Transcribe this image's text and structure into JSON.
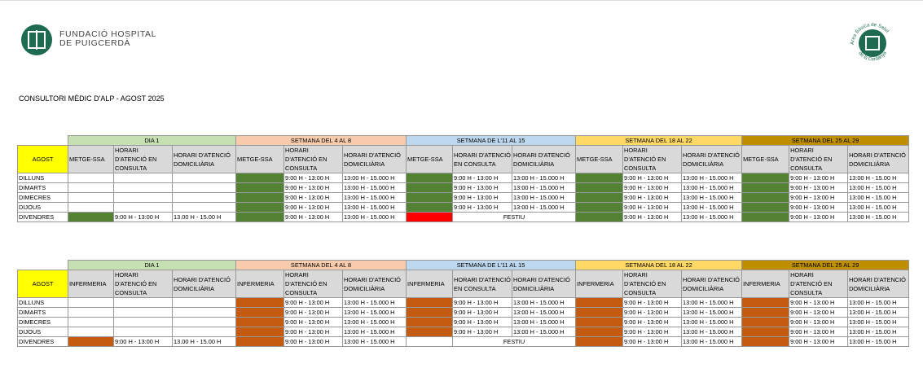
{
  "header": {
    "org_lines": [
      "FUNDACIÓ HOSPITAL",
      "DE PUIGCERDÀ"
    ],
    "logo2_lines": [
      "Àrea Bàsica de Salut",
      "de la Cerdanya"
    ]
  },
  "title": "CONSULTORI MÈDIC D'ALP - AGOST 2025",
  "tables": [
    {
      "corner": "AGOST",
      "corner_color": "#ffff00",
      "weeks": [
        {
          "label": "DIA 1",
          "color": "#c6e0b4"
        },
        {
          "label": "SETMANA DEL 4 AL 8",
          "color": "#f8cbad"
        },
        {
          "label": "SETMANA DE L'11 AL 15",
          "color": "#bdd7ee"
        },
        {
          "label": "SETMANA DEL 18 AL 22",
          "color": "#ffd966"
        },
        {
          "label": "SETMANA DEL 25 AL 29",
          "color": "#bf8f00"
        }
      ],
      "columns": [
        "METGE-SSA",
        "HORARI D'ATENCIÓ EN CONSULTA",
        "HORARI D'ATENCIÓ DOMICILIÀRIA"
      ],
      "rows": [
        {
          "day": "DILLUNS",
          "weeks": [
            {
              "staff": null,
              "consulta": null,
              "domicili": null
            },
            {
              "staff": "#548235",
              "consulta": "9:00 H - 13:00 H",
              "domicili": "13:00 H - 15.000 H"
            },
            {
              "staff": "#548235",
              "consulta": "9:00 H - 13:00 H",
              "domicili": "13:00 H - 15.000 H"
            },
            {
              "staff": "#548235",
              "consulta": "9:00 H - 13:00 H",
              "domicili": "13:00 H - 15.000 H"
            },
            {
              "staff": "#548235",
              "consulta": "9:00 H - 13:00 H",
              "domicili": "13:00 H - 15.00 H"
            }
          ]
        },
        {
          "day": "DIMARTS",
          "weeks": [
            {
              "staff": null,
              "consulta": null,
              "domicili": null
            },
            {
              "staff": "#548235",
              "consulta": "9:00 H - 13:00 H",
              "domicili": "13:00 H - 15.000 H"
            },
            {
              "staff": "#548235",
              "consulta": "9:00 H - 13:00 H",
              "domicili": "13:00 H - 15.000 H"
            },
            {
              "staff": "#548235",
              "consulta": "9:00 H - 13:00 H",
              "domicili": "13:00 H - 15.000 H"
            },
            {
              "staff": "#548235",
              "consulta": "9:00 H - 13:00 H",
              "domicili": "13:00 H - 15.00 H"
            }
          ]
        },
        {
          "day": "DIMECRES",
          "weeks": [
            {
              "staff": null,
              "consulta": null,
              "domicili": null
            },
            {
              "staff": "#548235",
              "consulta": "9:00 H - 13:00 H",
              "domicili": "13:00 H - 15.000 H"
            },
            {
              "staff": "#548235",
              "consulta": "9:00 H - 13:00 H",
              "domicili": "13:00 H - 15.000 H"
            },
            {
              "staff": "#548235",
              "consulta": "9:00 H - 13:00 H",
              "domicili": "13:00 H - 15.000 H"
            },
            {
              "staff": "#548235",
              "consulta": "9:00 H - 13:00 H",
              "domicili": "13:00 H - 15.00 H"
            }
          ]
        },
        {
          "day": "DIJOUS",
          "weeks": [
            {
              "staff": null,
              "consulta": null,
              "domicili": null
            },
            {
              "staff": "#548235",
              "consulta": "9:00 H - 13:00 H",
              "domicili": "13:00 H - 15.000 H"
            },
            {
              "staff": "#548235",
              "consulta": "9:00 H - 13:00 H",
              "domicili": "13:00 H - 15.000 H"
            },
            {
              "staff": "#548235",
              "consulta": "9:00 H - 13:00 H",
              "domicili": "13:00 H - 15.000 H"
            },
            {
              "staff": "#548235",
              "consulta": "9:00 H - 13:00 H",
              "domicili": "13:00 H - 15.00 H"
            }
          ]
        },
        {
          "day": "DIVENDRES",
          "weeks": [
            {
              "staff": "#548235",
              "consulta": "9:00 H - 13:00 H",
              "domicili": "13.00 H - 15.00 H"
            },
            {
              "staff": "#548235",
              "consulta": "9:00 H - 13:00 H",
              "domicili": "13:00 H - 15.000 H"
            },
            {
              "staff": "#ff0000",
              "closed": "FESTIU"
            },
            {
              "staff": "#548235",
              "consulta": "9:00 H - 13:00 H",
              "domicili": "13:00 H - 15.000 H"
            },
            {
              "staff": "#548235",
              "consulta": "9:00 H - 13:00 H",
              "domicili": "13:00 H - 15.00 H"
            }
          ]
        }
      ]
    },
    {
      "corner": "AGOST",
      "corner_color": "#ffff00",
      "weeks": [
        {
          "label": "DIA 1",
          "color": "#c6e0b4"
        },
        {
          "label": "SETMANA DEL 4 AL 8",
          "color": "#f8cbad"
        },
        {
          "label": "SETMANA DE L'11 AL 15",
          "color": "#bdd7ee"
        },
        {
          "label": "SETMANA DEL 18 AL 22",
          "color": "#ffd966"
        },
        {
          "label": "SETMANA DEL 25 AL 29",
          "color": "#bf8f00"
        }
      ],
      "columns": [
        "INFERMERIA",
        "HORARI D'ATENCIÓ EN CONSULTA",
        "HORARI D'ATENCIÓ DOMICILIÀRIA"
      ],
      "rows": [
        {
          "day": "DILLUNS",
          "weeks": [
            {
              "staff": null,
              "consulta": null,
              "domicili": null
            },
            {
              "staff": "#c55a11",
              "consulta": "9:00 H - 13:00 H",
              "domicili": "13:00 H - 15.000 H"
            },
            {
              "staff": "#c55a11",
              "consulta": "9:00 H - 13:00 H",
              "domicili": "13:00 H - 15.000 H"
            },
            {
              "staff": "#c55a11",
              "consulta": "9:00 H - 13:00 H",
              "domicili": "13:00 H - 15.000 H"
            },
            {
              "staff": "#c55a11",
              "consulta": "9:00 H - 13:00 H",
              "domicili": "13:00 H - 15.00 H"
            }
          ]
        },
        {
          "day": "DIMARTS",
          "weeks": [
            {
              "staff": null,
              "consulta": null,
              "domicili": null
            },
            {
              "staff": "#c55a11",
              "consulta": "9:00 H - 13:00 H",
              "domicili": "13:00 H - 15.000 H"
            },
            {
              "staff": "#c55a11",
              "consulta": "9:00 H - 13:00 H",
              "domicili": "13:00 H - 15.000 H"
            },
            {
              "staff": "#c55a11",
              "consulta": "9:00 H - 13:00 H",
              "domicili": "13:00 H - 15.000 H"
            },
            {
              "staff": "#c55a11",
              "consulta": "9:00 H - 13:00 H",
              "domicili": "13:00 H - 15.00 H"
            }
          ]
        },
        {
          "day": "DIMECRES",
          "weeks": [
            {
              "staff": null,
              "consulta": null,
              "domicili": null
            },
            {
              "staff": "#c55a11",
              "consulta": "9:00 H - 13:00 H",
              "domicili": "13:00 H - 15.000 H"
            },
            {
              "staff": "#c55a11",
              "consulta": "9:00 H - 13:00 H",
              "domicili": "13:00 H - 15.000 H"
            },
            {
              "staff": "#c55a11",
              "consulta": "9:00 H - 13:00 H",
              "domicili": "13:00 H - 15.000 H"
            },
            {
              "staff": "#c55a11",
              "consulta": "9:00 H - 13:00 H",
              "domicili": "13:00 H - 15.00 H"
            }
          ]
        },
        {
          "day": "DIJOUS",
          "weeks": [
            {
              "staff": null,
              "consulta": null,
              "domicili": null
            },
            {
              "staff": "#c55a11",
              "consulta": "9:00 H - 13:00 H",
              "domicili": "13:00 H - 15.000 H"
            },
            {
              "staff": "#c55a11",
              "consulta": "9:00 H - 13:00 H",
              "domicili": "13:00 H - 15.000 H"
            },
            {
              "staff": "#c55a11",
              "consulta": "9:00 H - 13:00 H",
              "domicili": "13:00 H - 15.000 H"
            },
            {
              "staff": "#c55a11",
              "consulta": "9:00 H - 13:00 H",
              "domicili": "13:00 H - 15.00 H"
            }
          ]
        },
        {
          "day": "DIVENDRES",
          "weeks": [
            {
              "staff": "#c55a11",
              "consulta": "9:00 H - 13:00 H",
              "domicili": "13.00 H - 15.00 H"
            },
            {
              "staff": "#c55a11",
              "consulta": "9:00 H - 13:00 H",
              "domicili": "13:00 H - 15.000 H"
            },
            {
              "staff": null,
              "closed": "FESTIU"
            },
            {
              "staff": "#c55a11",
              "consulta": "9:00 H - 13:00 H",
              "domicili": "13:00 H - 15.000 H"
            },
            {
              "staff": "#c55a11",
              "consulta": "9:00 H - 13:00 H",
              "domicili": "13:00 H - 15.00 H"
            }
          ]
        }
      ]
    }
  ]
}
